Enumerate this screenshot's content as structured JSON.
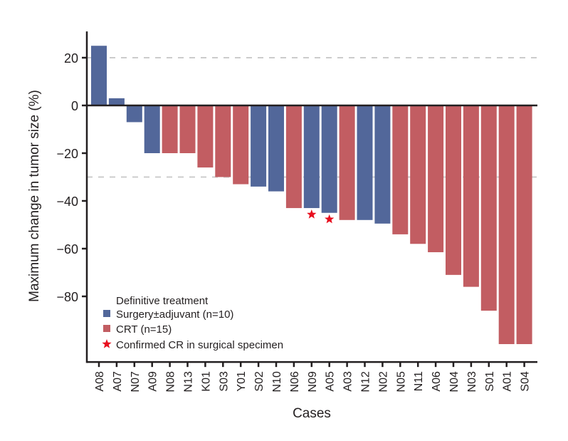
{
  "chart_data": {
    "type": "bar",
    "title": "",
    "xlabel": "Cases",
    "ylabel": "Maximum change in tumor size (%)",
    "ylim": [
      -107.5,
      31
    ],
    "yticks": [
      20,
      0,
      -20,
      -40,
      -60,
      -80
    ],
    "ytick_labels": [
      "20",
      "0",
      "−20",
      "−40",
      "−60",
      "−80"
    ],
    "reference_lines": [
      20,
      -30
    ],
    "grid": false,
    "categories": [
      "A08",
      "A07",
      "N07",
      "A09",
      "N08",
      "N13",
      "K01",
      "S03",
      "Y01",
      "S02",
      "N10",
      "N06",
      "N09",
      "A05",
      "A03",
      "N12",
      "N02",
      "N05",
      "N11",
      "A06",
      "N04",
      "N03",
      "S01",
      "A01",
      "S04"
    ],
    "values": [
      25,
      3,
      -7,
      -20,
      -20,
      -20,
      -26,
      -30,
      -33,
      -34,
      -36,
      -43,
      -43,
      -45,
      -48,
      -48,
      -49.5,
      -54,
      -58,
      -61.5,
      -71,
      -76,
      -86,
      -100,
      -100
    ],
    "groups": [
      "surgery",
      "surgery",
      "surgery",
      "surgery",
      "crt",
      "crt",
      "crt",
      "crt",
      "crt",
      "surgery",
      "surgery",
      "crt",
      "surgery",
      "surgery",
      "crt",
      "surgery",
      "surgery",
      "crt",
      "crt",
      "crt",
      "crt",
      "crt",
      "crt",
      "crt",
      "crt"
    ],
    "confirmed_cr": [
      "N09",
      "A05"
    ],
    "series_colors": {
      "surgery": "#52679a",
      "crt": "#c25d62",
      "star": "#e8101f",
      "refline": "#cccccc"
    },
    "legend": {
      "placement": "bottom-left",
      "title": "Definitive treatment",
      "entries": [
        {
          "key": "surgery",
          "label": "Surgery±adjuvant (n=10)",
          "marker": "square"
        },
        {
          "key": "crt",
          "label": "CRT (n=15)",
          "marker": "square"
        },
        {
          "key": "star",
          "label": "Confirmed CR in surgical specimen",
          "marker": "star"
        }
      ]
    }
  }
}
